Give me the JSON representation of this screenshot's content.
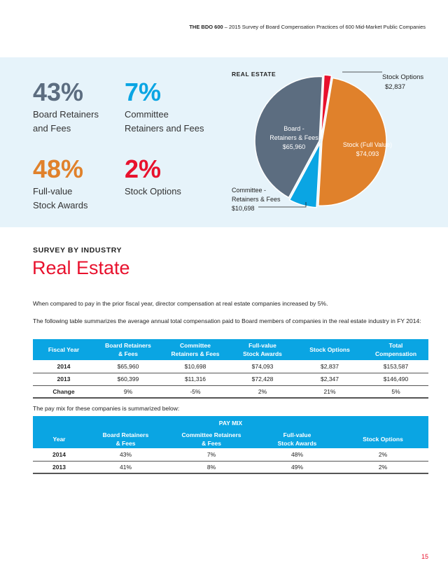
{
  "header": {
    "brand": "THE BDO 600",
    "subtitle": " – 2015 Survey of Board Compensation Practices of 600 Mid-Market Public Companies"
  },
  "stats": [
    {
      "pct": "43%",
      "label_line1": "Board Retainers",
      "label_line2": "and Fees",
      "color": "#5c6d80"
    },
    {
      "pct": "7%",
      "label_line1": "Committee",
      "label_line2": "Retainers and Fees",
      "color": "#0aa5e3"
    },
    {
      "pct": "48%",
      "label_line1": "Full-value",
      "label_line2": "Stock Awards",
      "color": "#e0812b"
    },
    {
      "pct": "2%",
      "label_line1": "Stock Options",
      "label_line2": "",
      "color": "#e8112d"
    }
  ],
  "chart_data": {
    "type": "pie",
    "title": "REAL ESTATE",
    "slices": [
      {
        "name_line1": "Stock (Full Value)",
        "name_line2": "",
        "value_label": "$74,093",
        "value": 74093,
        "color": "#e0812b"
      },
      {
        "name_line1": "Committee -",
        "name_line2": "Retainers & Fees",
        "value_label": "$10,698",
        "value": 10698,
        "color": "#0aa5e3"
      },
      {
        "name_line1": "Board -",
        "name_line2": "Retainers & Fees",
        "value_label": "$65,960",
        "value": 65960,
        "color": "#5c6d80"
      },
      {
        "name_line1": "Stock Options",
        "name_line2": "",
        "value_label": "$2,837",
        "value": 2837,
        "color": "#e8112d"
      }
    ]
  },
  "section": {
    "kicker": "SURVEY BY INDUSTRY",
    "title": "Real Estate"
  },
  "paragraphs": {
    "p1": "When compared to pay in the prior fiscal year, director compensation at real estate companies increased by 5%.",
    "p2": "The following table summarizes the average annual total compensation paid to Board members of companies in the real estate industry in FY 2014:",
    "p3": "The pay mix for these companies is summarized below:"
  },
  "comp_table": {
    "headers": [
      [
        "Fiscal Year",
        ""
      ],
      [
        "Board Retainers",
        "& Fees"
      ],
      [
        "Committee",
        "Retainers & Fees"
      ],
      [
        "Full-value",
        "Stock Awards"
      ],
      [
        "Stock Options",
        ""
      ],
      [
        "Total",
        "Compensation"
      ]
    ],
    "rows": [
      [
        "2014",
        "$65,960",
        "$10,698",
        "$74,093",
        "$2,837",
        "$153,587"
      ],
      [
        "2013",
        "$60,399",
        "$11,316",
        "$72,428",
        "$2,347",
        "$146,490"
      ],
      [
        "Change",
        "9%",
        "-5%",
        "2%",
        "21%",
        "5%"
      ]
    ]
  },
  "mix_table": {
    "title": "PAY MIX",
    "headers": [
      [
        "Year",
        ""
      ],
      [
        "Board Retainers",
        "& Fees"
      ],
      [
        "Committee Retainers",
        "& Fees"
      ],
      [
        "Full-value",
        "Stock Awards"
      ],
      [
        "Stock Options",
        ""
      ]
    ],
    "rows": [
      [
        "2014",
        "43%",
        "7%",
        "48%",
        "2%"
      ],
      [
        "2013",
        "41%",
        "8%",
        "49%",
        "2%"
      ]
    ]
  },
  "page_number": "15"
}
